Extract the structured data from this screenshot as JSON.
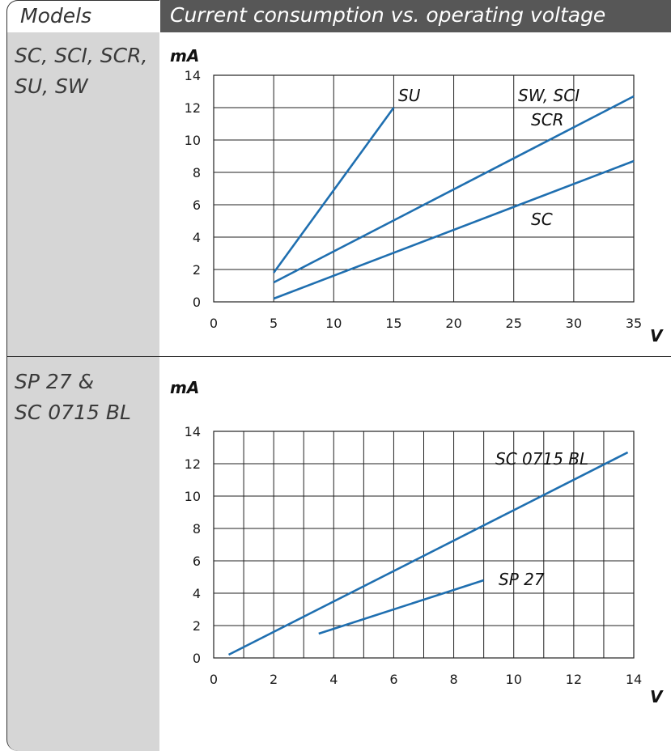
{
  "header": {
    "models_label": "Models",
    "title": "Current consumption vs. operating voltage"
  },
  "rows": [
    {
      "model_lines": [
        "SC, SCI, SCR,",
        "SU, SW"
      ]
    },
    {
      "model_lines": [
        "SP 27 &",
        "SC 0715 BL"
      ]
    }
  ],
  "colors": {
    "line": "#1f6fb0",
    "grid": "#222222",
    "sidebar": "#d6d6d6",
    "header": "#575757"
  },
  "chart_data": [
    {
      "type": "line",
      "ylabel": "mA",
      "xlabel": "V",
      "xlim": [
        0,
        35
      ],
      "ylim": [
        0,
        14
      ],
      "xticks": [
        0,
        5,
        10,
        15,
        20,
        25,
        30,
        35
      ],
      "yticks": [
        0,
        2,
        4,
        6,
        8,
        10,
        12,
        14
      ],
      "grid": true,
      "series": [
        {
          "name": "SU",
          "x": [
            5,
            15
          ],
          "y": [
            1.8,
            12
          ]
        },
        {
          "name": "SW, SCI\nSCR",
          "x": [
            5,
            35
          ],
          "y": [
            1.2,
            12.7
          ]
        },
        {
          "name": "SC",
          "x": [
            5,
            35
          ],
          "y": [
            0.2,
            8.7
          ]
        }
      ]
    },
    {
      "type": "line",
      "ylabel": "mA",
      "xlabel": "V",
      "xlim": [
        0,
        14
      ],
      "ylim": [
        0,
        14
      ],
      "xticks": [
        0,
        2,
        4,
        6,
        8,
        10,
        12,
        14
      ],
      "yticks": [
        0,
        2,
        4,
        6,
        8,
        10,
        12,
        14
      ],
      "grid": true,
      "series": [
        {
          "name": "SC 0715 BL",
          "x": [
            0.5,
            13.8
          ],
          "y": [
            0.2,
            12.7
          ]
        },
        {
          "name": "SP 27",
          "x": [
            3.5,
            9
          ],
          "y": [
            1.5,
            4.8
          ]
        }
      ]
    }
  ]
}
